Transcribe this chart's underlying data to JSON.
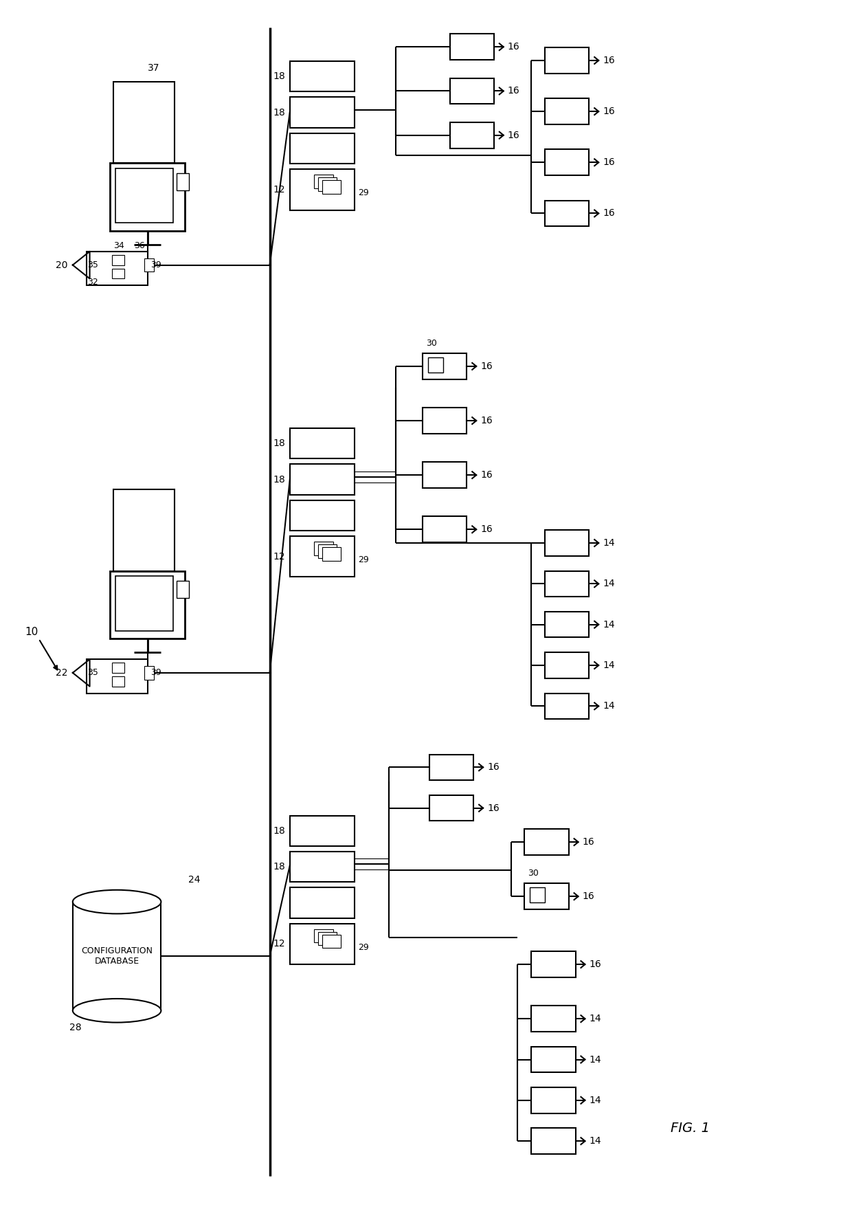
{
  "title": "FIG. 1",
  "bg_color": "#ffffff",
  "line_color": "#000000",
  "fig_width": 12.4,
  "fig_height": 17.59,
  "dpi": 100,
  "config_db_text": "CONFIGURATION\nDATABASE"
}
